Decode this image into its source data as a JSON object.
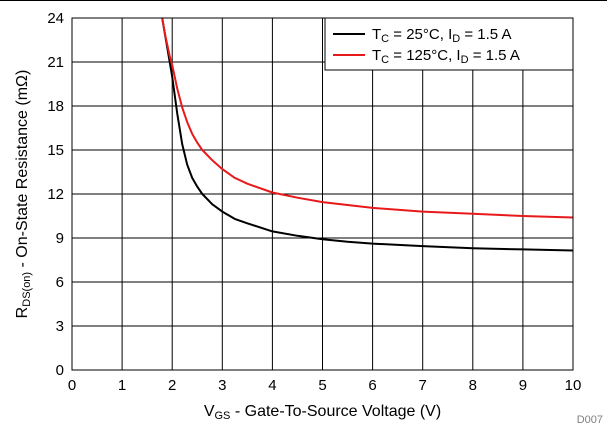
{
  "chart_data": {
    "type": "line",
    "figure_id": "D007",
    "xlabel": {
      "main": "V",
      "sub": "GS",
      "rest": " - Gate-To-Source Voltage (V)"
    },
    "ylabel": {
      "main": "R",
      "sub": "DS(on)",
      "rest": " - On-State Resistance (mΩ)"
    },
    "xlim": [
      0,
      10
    ],
    "ylim": [
      0,
      24
    ],
    "xticks": [
      "0",
      "1",
      "2",
      "3",
      "4",
      "5",
      "6",
      "7",
      "8",
      "9",
      "10"
    ],
    "yticks": [
      "0",
      "3",
      "6",
      "9",
      "12",
      "15",
      "18",
      "21",
      "24"
    ],
    "grid": true,
    "legend_position": "top-right",
    "series": [
      {
        "name": "TC = 25°C, ID = 1.5 A",
        "legend": {
          "t": "T",
          "tsub": "C",
          "mid": " = 25°C, I",
          "isub": "D",
          "tail": " = 1.5 A"
        },
        "color": "#000000",
        "x": [
          1.8,
          1.85,
          1.9,
          1.95,
          2.0,
          2.1,
          2.2,
          2.3,
          2.4,
          2.5,
          2.6,
          2.8,
          3.0,
          3.25,
          3.5,
          4.0,
          4.5,
          5.0,
          5.5,
          6.0,
          7.0,
          8.0,
          9.0,
          10.0
        ],
        "y": [
          24.0,
          23.0,
          22.0,
          21.0,
          20.0,
          17.5,
          15.4,
          14.0,
          13.1,
          12.5,
          12.0,
          11.3,
          10.8,
          10.3,
          10.0,
          9.45,
          9.15,
          8.92,
          8.75,
          8.62,
          8.45,
          8.3,
          8.22,
          8.15
        ]
      },
      {
        "name": "TC = 125°C, ID = 1.5 A",
        "legend": {
          "t": "T",
          "tsub": "C",
          "mid": " = 125°C, I",
          "isub": "D",
          "tail": " = 1.5 A"
        },
        "color": "#e8191a",
        "x": [
          1.8,
          1.85,
          1.9,
          1.95,
          2.0,
          2.1,
          2.2,
          2.3,
          2.4,
          2.5,
          2.6,
          2.8,
          3.0,
          3.25,
          3.5,
          4.0,
          4.5,
          5.0,
          5.5,
          6.0,
          7.0,
          8.0,
          9.0,
          10.0
        ],
        "y": [
          24.0,
          23.0,
          22.2,
          21.4,
          20.8,
          19.2,
          17.9,
          16.9,
          16.1,
          15.5,
          15.0,
          14.3,
          13.7,
          13.1,
          12.7,
          12.1,
          11.75,
          11.45,
          11.25,
          11.05,
          10.8,
          10.65,
          10.5,
          10.4
        ]
      }
    ]
  }
}
